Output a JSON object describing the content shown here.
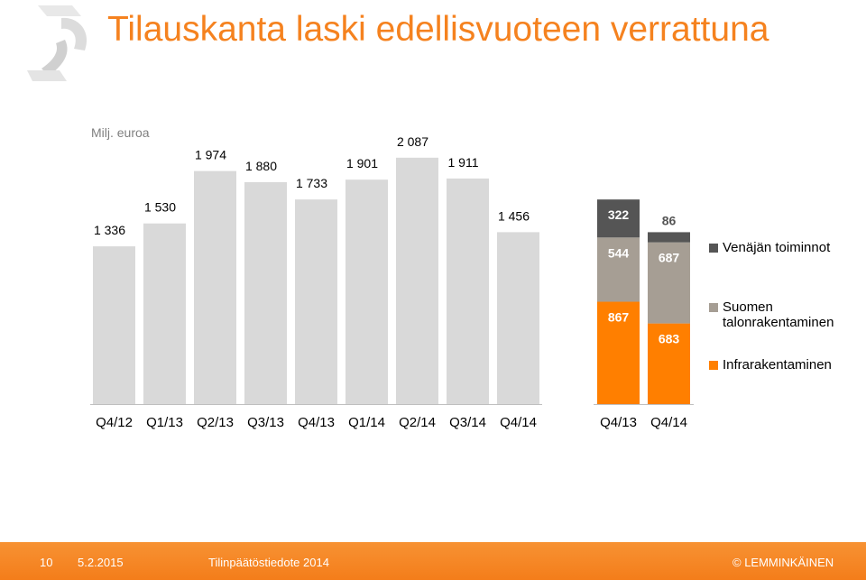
{
  "header": {
    "title": "Tilauskanta laski edellisvuoteen verrattuna",
    "unit_label": "Milj. euroa"
  },
  "chart_data": [
    {
      "type": "bar",
      "categories": [
        "Q4/12",
        "Q1/13",
        "Q2/13",
        "Q3/13",
        "Q4/13",
        "Q1/14",
        "Q2/14",
        "Q3/14",
        "Q4/14"
      ],
      "values": [
        1336,
        1530,
        1974,
        1880,
        1733,
        1901,
        2087,
        1911,
        1456
      ],
      "value_labels": [
        "1 336",
        "1 530",
        "1 974",
        "1 880",
        "1 733",
        "1 901",
        "2 087",
        "1 911",
        "1 456"
      ],
      "color": "#d9d9d9"
    },
    {
      "type": "bar",
      "stacked": true,
      "categories": [
        "Q4/13",
        "Q4/14"
      ],
      "series": [
        {
          "name": "Infrarakentaminen",
          "values": [
            867,
            683
          ],
          "labels": [
            "867",
            "683"
          ],
          "color": "#ff7f00"
        },
        {
          "name": "Suomen talonrakentaminen",
          "values": [
            544,
            687
          ],
          "labels": [
            "544",
            "687"
          ],
          "color": "#a69e94"
        },
        {
          "name": "Venäjän toiminnot",
          "values": [
            322,
            86
          ],
          "labels": [
            "322",
            "86"
          ],
          "color": "#555555"
        }
      ]
    }
  ],
  "footer": {
    "page_number": "10",
    "date": "5.2.2015",
    "document": "Tilinpäätöstiedote 2014",
    "brand": "© LEMMINKÄINEN"
  }
}
